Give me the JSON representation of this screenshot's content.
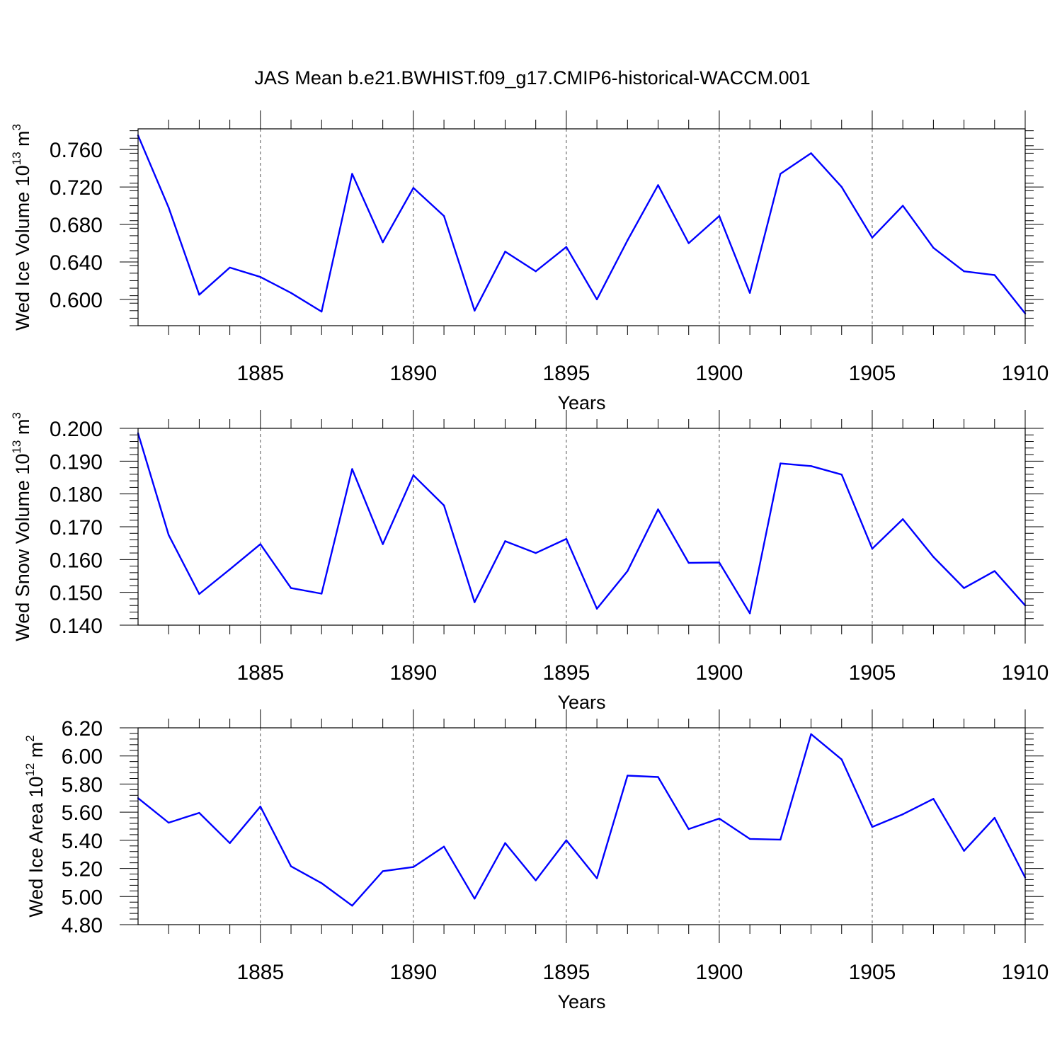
{
  "title": "JAS Mean b.e21.BWHIST.f09_g17.CMIP6-historical-WACCM.001",
  "line_color": "#0000ff",
  "chart_data": [
    {
      "type": "line",
      "ylabel": "Wed Ice Volume 10",
      "ylabel_exp": "13",
      "ylabel_unit": " m",
      "ylabel_unit_exp": "3",
      "xlabel": "Years",
      "xlim": [
        1881,
        1910
      ],
      "ylim": [
        0.572,
        0.782
      ],
      "yticks": [
        0.6,
        0.64,
        0.68,
        0.72,
        0.76
      ],
      "ytick_labels": [
        "0.600",
        "0.640",
        "0.680",
        "0.720",
        "0.760"
      ],
      "yminor_step": 0.008,
      "xticks": [
        1885,
        1890,
        1895,
        1900,
        1905,
        1910
      ],
      "xtick_labels": [
        "1885",
        "1890",
        "1895",
        "1900",
        "1905",
        "1910"
      ],
      "grid": "vertical dashed at major x ticks",
      "x": [
        1881,
        1882,
        1883,
        1884,
        1885,
        1886,
        1887,
        1888,
        1889,
        1890,
        1891,
        1892,
        1893,
        1894,
        1895,
        1896,
        1897,
        1898,
        1899,
        1900,
        1901,
        1902,
        1903,
        1904,
        1905,
        1906,
        1907,
        1908,
        1909,
        1910
      ],
      "values": [
        0.775,
        0.698,
        0.605,
        0.634,
        0.624,
        0.607,
        0.587,
        0.734,
        0.661,
        0.719,
        0.689,
        0.588,
        0.651,
        0.63,
        0.656,
        0.6,
        0.663,
        0.722,
        0.66,
        0.689,
        0.607,
        0.734,
        0.756,
        0.72,
        0.666,
        0.7,
        0.655,
        0.63,
        0.626,
        0.585
      ]
    },
    {
      "type": "line",
      "ylabel": "Wed Snow Volume 10",
      "ylabel_exp": "13",
      "ylabel_unit": " m",
      "ylabel_unit_exp": "3",
      "xlabel": "Years",
      "xlim": [
        1881,
        1910
      ],
      "ylim": [
        0.14,
        0.2
      ],
      "yticks": [
        0.14,
        0.15,
        0.16,
        0.17,
        0.18,
        0.19,
        0.2
      ],
      "ytick_labels": [
        "0.140",
        "0.150",
        "0.160",
        "0.170",
        "0.180",
        "0.190",
        "0.200"
      ],
      "yminor_step": 0.002,
      "xticks": [
        1885,
        1890,
        1895,
        1900,
        1905,
        1910
      ],
      "xtick_labels": [
        "1885",
        "1890",
        "1895",
        "1900",
        "1905",
        "1910"
      ],
      "grid": "vertical dashed at major x ticks",
      "x": [
        1881,
        1882,
        1883,
        1884,
        1885,
        1886,
        1887,
        1888,
        1889,
        1890,
        1891,
        1892,
        1893,
        1894,
        1895,
        1896,
        1897,
        1898,
        1899,
        1900,
        1901,
        1902,
        1903,
        1904,
        1905,
        1906,
        1907,
        1908,
        1909,
        1910
      ],
      "values": [
        0.1985,
        0.1675,
        0.1495,
        0.157,
        0.1647,
        0.1513,
        0.1496,
        0.1876,
        0.1647,
        0.1857,
        0.1765,
        0.147,
        0.1656,
        0.162,
        0.1663,
        0.145,
        0.1565,
        0.1753,
        0.159,
        0.1591,
        0.1436,
        0.1893,
        0.1885,
        0.1859,
        0.1633,
        0.1723,
        0.1608,
        0.1513,
        0.1565,
        0.146
      ]
    },
    {
      "type": "line",
      "ylabel": "Wed Ice Area 10",
      "ylabel_exp": "12",
      "ylabel_unit": " m",
      "ylabel_unit_exp": "2",
      "xlabel": "Years",
      "xlim": [
        1881,
        1910
      ],
      "ylim": [
        4.8,
        6.2
      ],
      "yticks": [
        4.8,
        5.0,
        5.2,
        5.4,
        5.6,
        5.8,
        6.0,
        6.2
      ],
      "ytick_labels": [
        "4.80",
        "5.00",
        "5.20",
        "5.40",
        "5.60",
        "5.80",
        "6.00",
        "6.20"
      ],
      "yminor_step": 0.04,
      "xticks": [
        1885,
        1890,
        1895,
        1900,
        1905,
        1910
      ],
      "xtick_labels": [
        "1885",
        "1890",
        "1895",
        "1900",
        "1905",
        "1910"
      ],
      "grid": "vertical dashed at major x ticks",
      "x": [
        1881,
        1882,
        1883,
        1884,
        1885,
        1886,
        1887,
        1888,
        1889,
        1890,
        1891,
        1892,
        1893,
        1894,
        1895,
        1896,
        1897,
        1898,
        1899,
        1900,
        1901,
        1902,
        1903,
        1904,
        1905,
        1906,
        1907,
        1908,
        1909,
        1910
      ],
      "values": [
        5.7,
        5.525,
        5.595,
        5.38,
        5.64,
        5.215,
        5.095,
        4.935,
        5.18,
        5.21,
        5.355,
        4.985,
        5.38,
        5.115,
        5.4,
        5.13,
        5.86,
        5.85,
        5.48,
        5.555,
        5.41,
        5.405,
        6.155,
        5.975,
        5.495,
        5.585,
        5.695,
        5.325,
        5.56,
        5.135
      ]
    }
  ]
}
